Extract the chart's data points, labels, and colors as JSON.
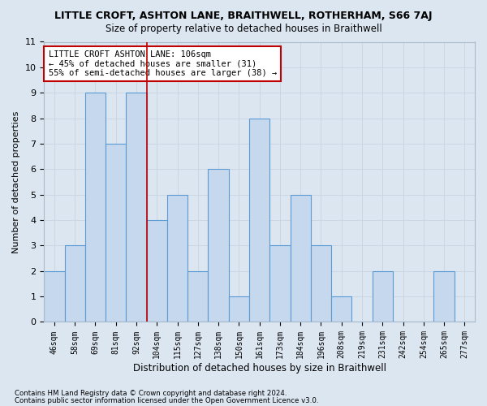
{
  "title": "LITTLE CROFT, ASHTON LANE, BRAITHWELL, ROTHERHAM, S66 7AJ",
  "subtitle": "Size of property relative to detached houses in Braithwell",
  "xlabel": "Distribution of detached houses by size in Braithwell",
  "ylabel": "Number of detached properties",
  "footnote1": "Contains HM Land Registry data © Crown copyright and database right 2024.",
  "footnote2": "Contains public sector information licensed under the Open Government Licence v3.0.",
  "bin_labels": [
    "46sqm",
    "58sqm",
    "69sqm",
    "81sqm",
    "92sqm",
    "104sqm",
    "115sqm",
    "127sqm",
    "138sqm",
    "150sqm",
    "161sqm",
    "173sqm",
    "184sqm",
    "196sqm",
    "208sqm",
    "219sqm",
    "231sqm",
    "242sqm",
    "254sqm",
    "265sqm",
    "277sqm"
  ],
  "bar_values": [
    2,
    3,
    9,
    7,
    9,
    4,
    5,
    2,
    6,
    1,
    8,
    3,
    5,
    3,
    1,
    0,
    2,
    0,
    0,
    2,
    0
  ],
  "bar_color": "#c5d8ed",
  "bar_edge_color": "#5b9bd5",
  "grid_color": "#c8d4e3",
  "background_color": "#dce6f1",
  "vline_x_index": 5,
  "vline_color": "#c00000",
  "annotation_line1": "LITTLE CROFT ASHTON LANE: 106sqm",
  "annotation_line2": "← 45% of detached houses are smaller (31)",
  "annotation_line3": "55% of semi-detached houses are larger (38) →",
  "annotation_box_color": "#ffffff",
  "annotation_box_edge": "#c00000",
  "ylim": [
    0,
    11
  ],
  "yticks": [
    0,
    1,
    2,
    3,
    4,
    5,
    6,
    7,
    8,
    9,
    10,
    11
  ]
}
